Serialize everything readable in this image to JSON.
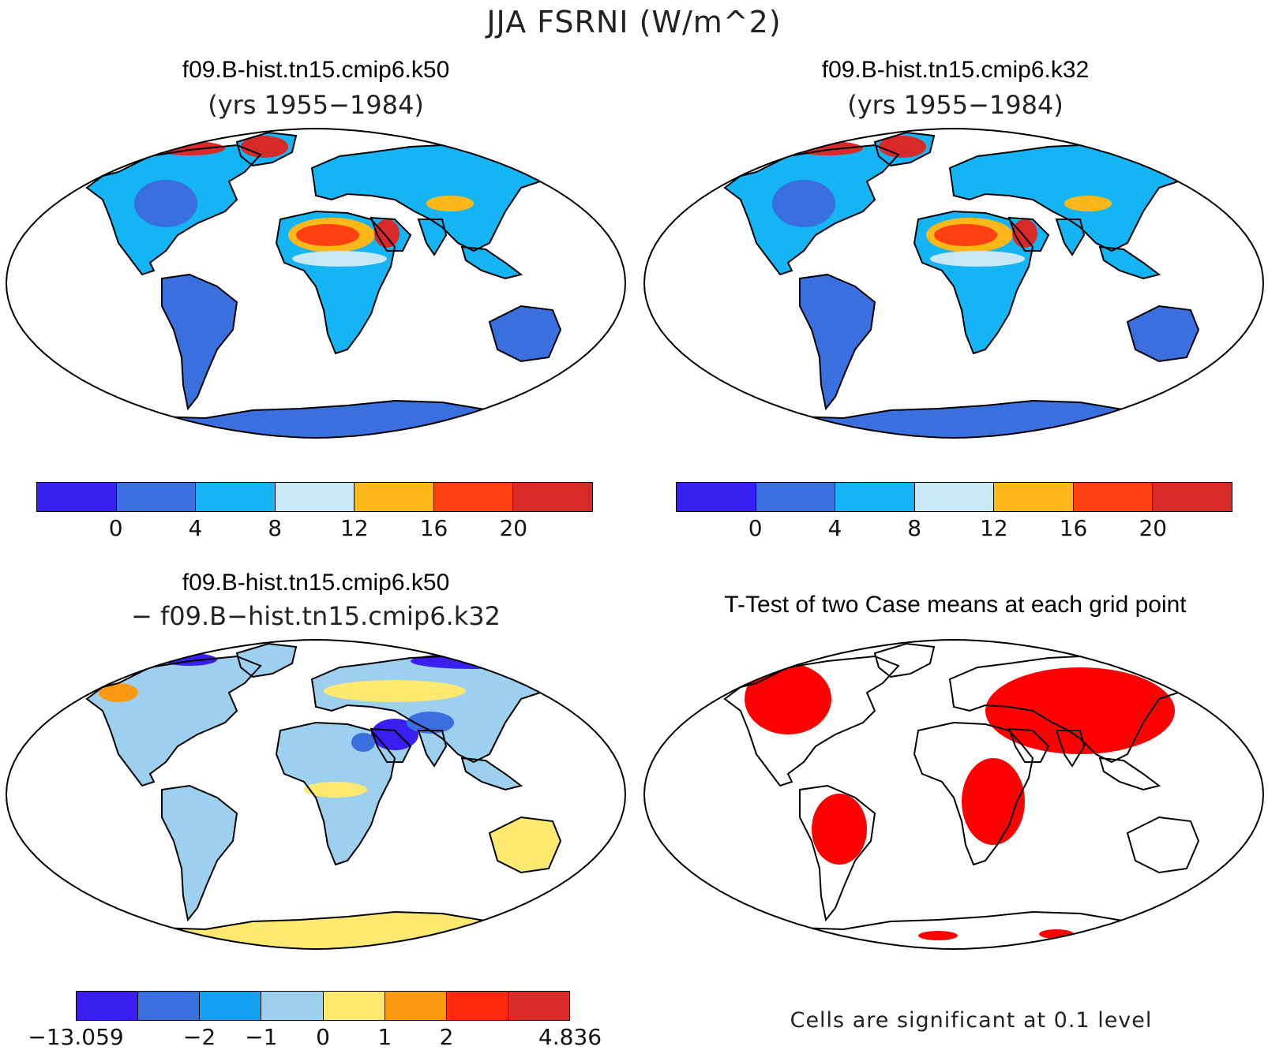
{
  "title": "JJA FSRNI (W/m^2)",
  "colors": {
    "abs_levels": [
      "#3a1ff2",
      "#3a6fe0",
      "#14b4f5",
      "#c8e8f5",
      "#fbb818",
      "#ff4010",
      "#d82a28"
    ],
    "diff_levels": [
      "#3a1ff2",
      "#3a6fe0",
      "#14a0f0",
      "#9cd0ee",
      "#fde870",
      "#fb9a10",
      "#ff2a10",
      "#d82a28"
    ],
    "significant": "#ff0000"
  },
  "panels": {
    "p1": {
      "title": "f09.B-hist.tn15.cmip6.k50",
      "subtitle": "(yrs 1955−1984)",
      "ticks": [
        "0",
        "4",
        "8",
        "12",
        "16",
        "20"
      ]
    },
    "p2": {
      "title": "f09.B-hist.tn15.cmip6.k32",
      "subtitle": "(yrs 1955−1984)",
      "ticks": [
        "0",
        "4",
        "8",
        "12",
        "16",
        "20"
      ]
    },
    "p3": {
      "title": "f09.B-hist.tn15.cmip6.k50",
      "subtitle": "− f09.B−hist.tn15.cmip6.k32",
      "ticks": [
        "−13.059",
        "−2",
        "−1",
        "0",
        "1",
        "2",
        "4.836"
      ]
    },
    "p4": {
      "title": "T-Test of two Case means at each grid point",
      "note": "Cells are significant at 0.1 level"
    }
  }
}
